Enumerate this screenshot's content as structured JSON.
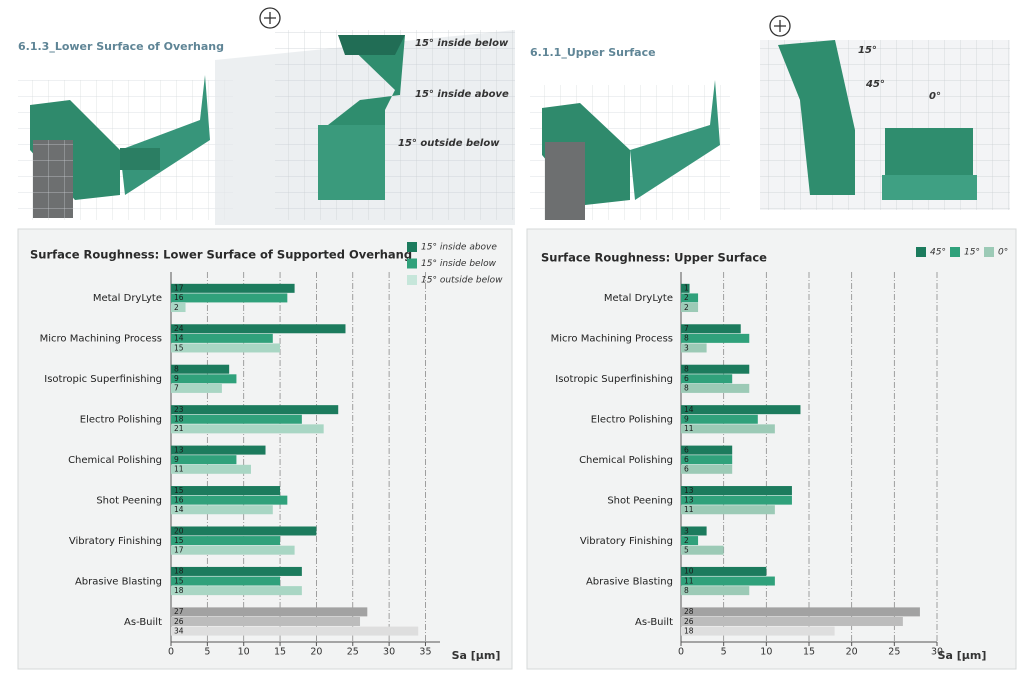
{
  "chart_data": [
    {
      "type": "hbar",
      "header": "6.1.3_Lower Surface of Overhang",
      "annotations": [
        "15° inside below",
        "15° inside above",
        "15° outside below"
      ],
      "title": "Surface Roughness: Lower Surface of Supported Overhang",
      "x_label": "Sa [µm]",
      "categories": [
        "Metal DryLyte",
        "Micro Machining Process",
        "Isotropic Superfinishing",
        "Electro Polishing",
        "Chemical Polishing",
        "Shot Peening",
        "Vibratory Finishing",
        "Abrasive Blasting",
        "As-Built"
      ],
      "series": [
        {
          "name": "15° inside above",
          "color": "#1c7b5d",
          "values": [
            17,
            24,
            8,
            23,
            13,
            15,
            20,
            18,
            27
          ],
          "bar_colors": [
            "#1c7b5d",
            "#1c7b5d",
            "#1c7b5d",
            "#1c7b5d",
            "#1c7b5d",
            "#1c7b5d",
            "#1c7b5d",
            "#1c7b5d",
            "#a2a2a2"
          ]
        },
        {
          "name": "15° inside below",
          "color": "#30a17b",
          "values": [
            16,
            14,
            9,
            18,
            9,
            16,
            15,
            15,
            26
          ],
          "bar_colors": [
            "#30a17b",
            "#30a17b",
            "#30a17b",
            "#30a17b",
            "#30a17b",
            "#30a17b",
            "#30a17b",
            "#30a17b",
            "#bcbcbc"
          ]
        },
        {
          "name": "15° outside below",
          "color": "#c6e6da",
          "values": [
            2,
            15,
            7,
            21,
            11,
            14,
            17,
            18,
            34
          ],
          "bar_colors": [
            "#a9d6c4",
            "#a9d6c4",
            "#a9d6c4",
            "#a9d6c4",
            "#a9d6c4",
            "#a9d6c4",
            "#a9d6c4",
            "#a9d6c4",
            "#dedede"
          ]
        }
      ],
      "xlim": [
        0,
        37
      ],
      "xticks": [
        0,
        5,
        10,
        15,
        20,
        25,
        30,
        35
      ],
      "grid": true,
      "legend": "top-right"
    },
    {
      "type": "hbar",
      "header": "6.1.1_Upper Surface",
      "annotations": [
        "15°",
        "45°",
        "0°"
      ],
      "title": "Surface Roughness: Upper Surface",
      "x_label": "Sa [µm]",
      "categories": [
        "Metal DryLyte",
        "Micro Machining Process",
        "Isotropic Superfinishing",
        "Electro Polishing",
        "Chemical Polishing",
        "Shot Peening",
        "Vibratory Finishing",
        "Abrasive Blasting",
        "As-Built"
      ],
      "series": [
        {
          "name": "45°",
          "color": "#1c7b5d",
          "values": [
            1,
            7,
            8,
            14,
            6,
            13,
            3,
            10,
            28
          ],
          "bar_colors": [
            "#1c7b5d",
            "#1c7b5d",
            "#1c7b5d",
            "#1c7b5d",
            "#1c7b5d",
            "#1c7b5d",
            "#1c7b5d",
            "#1c7b5d",
            "#a2a2a2"
          ]
        },
        {
          "name": "15°",
          "color": "#30a17b",
          "values": [
            2,
            8,
            6,
            9,
            6,
            13,
            2,
            11,
            26
          ],
          "bar_colors": [
            "#30a17b",
            "#30a17b",
            "#30a17b",
            "#30a17b",
            "#30a17b",
            "#30a17b",
            "#30a17b",
            "#30a17b",
            "#bcbcbc"
          ]
        },
        {
          "name": "0°",
          "color": "#9ccab6",
          "values": [
            2,
            3,
            8,
            11,
            6,
            11,
            5,
            8,
            18
          ],
          "bar_colors": [
            "#9ccab6",
            "#9ccab6",
            "#9ccab6",
            "#9ccab6",
            "#9ccab6",
            "#9ccab6",
            "#9ccab6",
            "#9ccab6",
            "#dedede"
          ]
        }
      ],
      "xlim": [
        0,
        30
      ],
      "xticks": [
        0,
        5,
        10,
        15,
        20,
        25,
        30
      ],
      "grid": true,
      "legend": "top-right"
    }
  ]
}
